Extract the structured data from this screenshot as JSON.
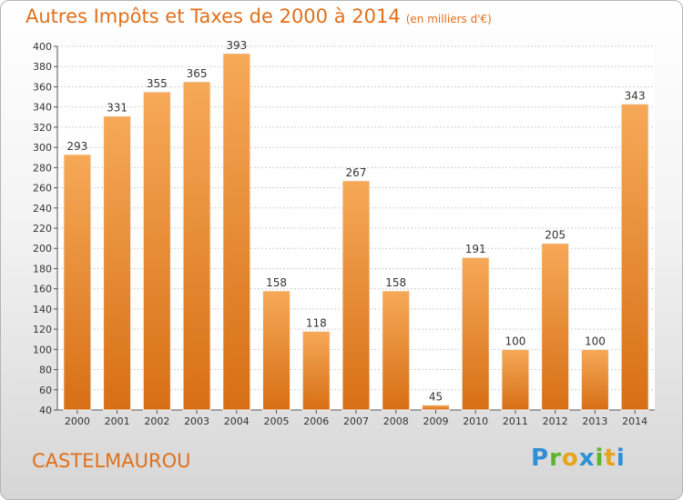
{
  "title": "Autres Impôts et Taxes de 2000 à 2014",
  "title_unit": "(en milliers d'€)",
  "commune": "CASTELMAUROU",
  "logo": {
    "letters": [
      "P",
      "r",
      "o",
      "x",
      "i",
      "t",
      "i"
    ],
    "colors": [
      "#2f8fd6",
      "#5ab52d",
      "#e8a41f",
      "#2f8fd6",
      "#5ab52d",
      "#e8a41f",
      "#2f8fd6"
    ]
  },
  "colors": {
    "bar_light": "#f6a958",
    "bar_dark": "#d76f15",
    "title": "#e0701a"
  },
  "chart_data": {
    "type": "bar",
    "categories": [
      "2000",
      "2001",
      "2002",
      "2003",
      "2004",
      "2005",
      "2006",
      "2007",
      "2008",
      "2009",
      "2010",
      "2011",
      "2012",
      "2013",
      "2014"
    ],
    "values": [
      293,
      331,
      355,
      365,
      393,
      158,
      118,
      267,
      158,
      45,
      191,
      100,
      205,
      100,
      343
    ],
    "title": "Autres Impôts et Taxes de 2000 à 2014",
    "xlabel": "",
    "ylabel": "",
    "ylim": [
      40,
      400
    ],
    "yticks": [
      40,
      60,
      80,
      100,
      120,
      140,
      160,
      180,
      200,
      220,
      240,
      260,
      280,
      300,
      320,
      340,
      360,
      380,
      400
    ],
    "grid": true,
    "legend": "none"
  }
}
